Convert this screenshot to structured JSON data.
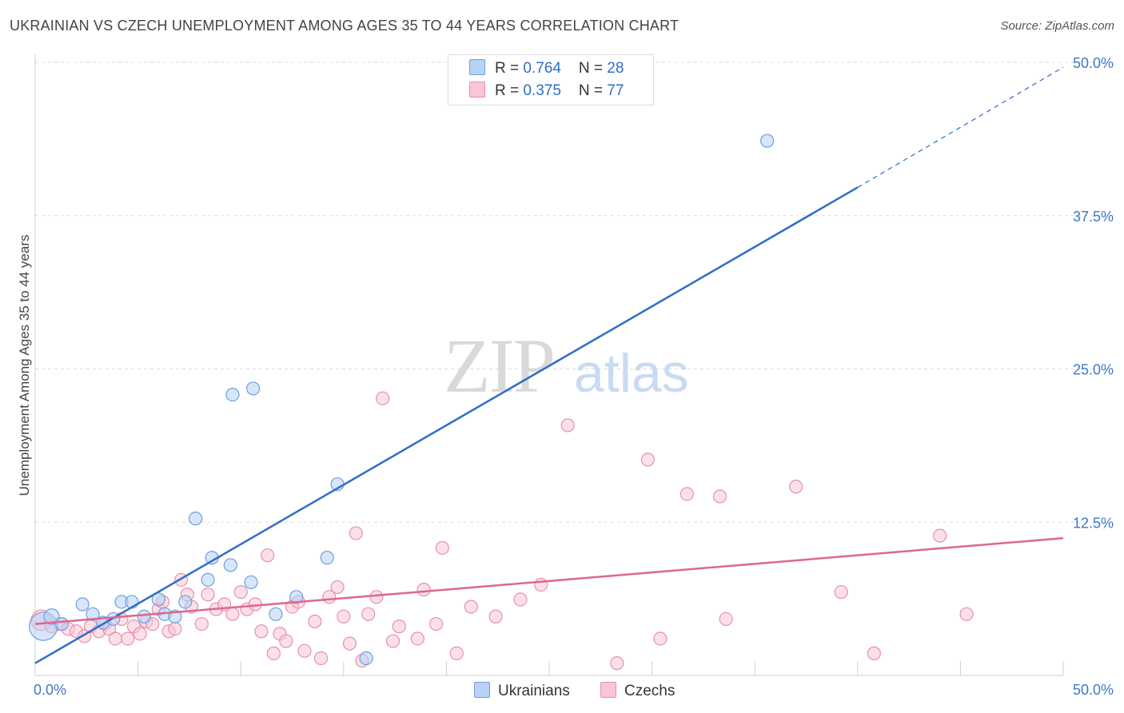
{
  "title": "UKRAINIAN VS CZECH UNEMPLOYMENT AMONG AGES 35 TO 44 YEARS CORRELATION CHART",
  "source": "Source: ZipAtlas.com",
  "watermark": {
    "zip": "ZIP",
    "atlas": "atlas"
  },
  "legend": [
    {
      "r_label": "R = ",
      "r_value": "0.764",
      "n_label": "N = ",
      "n_value": "28"
    },
    {
      "r_label": "R = ",
      "r_value": "0.375",
      "n_label": "N = ",
      "n_value": "77"
    }
  ],
  "colors": {
    "ukrainians_fill": "#b6d2f5",
    "ukrainians_stroke": "#6d9fde",
    "ukrainians_line": "#2e6dc8",
    "czechs_fill": "#f8c6d5",
    "czechs_stroke": "#e890ab",
    "czechs_line": "#e0668f",
    "tick_label": "#3e78c9",
    "grid": "#dcdcdc"
  },
  "chart_data": {
    "type": "scatter",
    "title": "UKRAINIAN VS CZECH UNEMPLOYMENT AMONG AGES 35 TO 44 YEARS CORRELATION CHART",
    "xlabel": "",
    "ylabel": "Unemployment Among Ages 35 to 44 years",
    "xlim": [
      0,
      50
    ],
    "ylim": [
      0,
      50
    ],
    "x_tick_labels": [
      "0.0%",
      "50.0%"
    ],
    "y_ticks": [
      12.5,
      25.0,
      37.5,
      50.0
    ],
    "y_tick_labels": [
      "12.5%",
      "25.0%",
      "37.5%",
      "50.0%"
    ],
    "grid": true,
    "legend_position": "top-center",
    "series": [
      {
        "name": "Ukrainians",
        "r": 0.764,
        "n": 28,
        "trend": {
          "x0": 0,
          "y0": 1.0,
          "x1": 40,
          "y1": 39.8,
          "dashed_to_x": 50,
          "dashed_to_y": 49.6
        },
        "points": [
          [
            0.4,
            4.0,
            22
          ],
          [
            0.8,
            4.8,
            12
          ],
          [
            1.3,
            4.2,
            10
          ],
          [
            2.3,
            5.8,
            10
          ],
          [
            2.8,
            5.0,
            10
          ],
          [
            3.3,
            4.3,
            10
          ],
          [
            3.8,
            4.6,
            10
          ],
          [
            4.2,
            6.0,
            10
          ],
          [
            4.7,
            6.0,
            10
          ],
          [
            5.3,
            4.8,
            10
          ],
          [
            6.0,
            6.2,
            10
          ],
          [
            6.3,
            5.0,
            10
          ],
          [
            6.8,
            4.8,
            10
          ],
          [
            7.3,
            6.0,
            10
          ],
          [
            7.8,
            12.8,
            10
          ],
          [
            8.4,
            7.8,
            10
          ],
          [
            8.6,
            9.6,
            10
          ],
          [
            9.5,
            9.0,
            10
          ],
          [
            9.6,
            22.9,
            10
          ],
          [
            10.6,
            23.4,
            10
          ],
          [
            10.5,
            7.6,
            10
          ],
          [
            11.7,
            5.0,
            10
          ],
          [
            12.7,
            6.4,
            10
          ],
          [
            14.2,
            9.6,
            10
          ],
          [
            14.7,
            15.6,
            10
          ],
          [
            16.1,
            1.4,
            10
          ],
          [
            35.6,
            43.6,
            10
          ]
        ]
      },
      {
        "name": "Czechs",
        "r": 0.375,
        "n": 77,
        "trend": {
          "x0": 0,
          "y0": 4.2,
          "x1": 50,
          "y1": 11.2
        },
        "points": [
          [
            0.3,
            4.5,
            16
          ],
          [
            0.8,
            4.0,
            10
          ],
          [
            1.2,
            4.2,
            10
          ],
          [
            1.6,
            3.8,
            10
          ],
          [
            2.0,
            3.6,
            10
          ],
          [
            2.4,
            3.2,
            10
          ],
          [
            2.7,
            4.0,
            10
          ],
          [
            3.1,
            3.6,
            10
          ],
          [
            3.4,
            4.2,
            10
          ],
          [
            3.6,
            3.8,
            10
          ],
          [
            3.9,
            3.0,
            10
          ],
          [
            4.2,
            4.6,
            10
          ],
          [
            4.5,
            3.0,
            10
          ],
          [
            4.8,
            4.0,
            10
          ],
          [
            5.1,
            3.4,
            10
          ],
          [
            5.4,
            4.4,
            10
          ],
          [
            5.7,
            4.2,
            10
          ],
          [
            6.0,
            5.4,
            10
          ],
          [
            6.2,
            6.0,
            10
          ],
          [
            6.5,
            3.6,
            10
          ],
          [
            6.8,
            3.8,
            10
          ],
          [
            7.1,
            7.8,
            10
          ],
          [
            7.4,
            6.6,
            10
          ],
          [
            7.6,
            5.6,
            10
          ],
          [
            8.1,
            4.2,
            10
          ],
          [
            8.4,
            6.6,
            10
          ],
          [
            8.8,
            5.4,
            10
          ],
          [
            9.2,
            5.8,
            10
          ],
          [
            9.6,
            5.0,
            10
          ],
          [
            10.0,
            6.8,
            10
          ],
          [
            10.3,
            5.4,
            10
          ],
          [
            10.7,
            5.8,
            10
          ],
          [
            11.0,
            3.6,
            10
          ],
          [
            11.3,
            9.8,
            10
          ],
          [
            11.6,
            1.8,
            10
          ],
          [
            11.9,
            3.4,
            10
          ],
          [
            12.2,
            2.8,
            10
          ],
          [
            12.5,
            5.6,
            10
          ],
          [
            12.8,
            6.0,
            10
          ],
          [
            13.1,
            2.0,
            10
          ],
          [
            13.6,
            4.4,
            10
          ],
          [
            13.9,
            1.4,
            10
          ],
          [
            14.3,
            6.4,
            10
          ],
          [
            14.7,
            7.2,
            10
          ],
          [
            15.0,
            4.8,
            10
          ],
          [
            15.3,
            2.6,
            10
          ],
          [
            15.6,
            11.6,
            10
          ],
          [
            15.9,
            1.2,
            10
          ],
          [
            16.2,
            5.0,
            10
          ],
          [
            16.6,
            6.4,
            10
          ],
          [
            16.9,
            22.6,
            10
          ],
          [
            17.4,
            2.8,
            10
          ],
          [
            17.7,
            4.0,
            10
          ],
          [
            18.6,
            3.0,
            10
          ],
          [
            18.9,
            7.0,
            10
          ],
          [
            19.5,
            4.2,
            10
          ],
          [
            19.8,
            10.4,
            10
          ],
          [
            20.5,
            1.8,
            10
          ],
          [
            21.2,
            5.6,
            10
          ],
          [
            22.4,
            4.8,
            10
          ],
          [
            23.6,
            6.2,
            10
          ],
          [
            24.6,
            7.4,
            10
          ],
          [
            25.9,
            20.4,
            10
          ],
          [
            28.3,
            1.0,
            10
          ],
          [
            29.8,
            17.6,
            10
          ],
          [
            30.4,
            3.0,
            10
          ],
          [
            31.7,
            14.8,
            10
          ],
          [
            33.3,
            14.6,
            10
          ],
          [
            33.6,
            4.6,
            10
          ],
          [
            37.0,
            15.4,
            10
          ],
          [
            39.2,
            6.8,
            10
          ],
          [
            40.8,
            1.8,
            10
          ],
          [
            44.0,
            11.4,
            10
          ],
          [
            45.3,
            5.0,
            10
          ]
        ]
      }
    ]
  }
}
